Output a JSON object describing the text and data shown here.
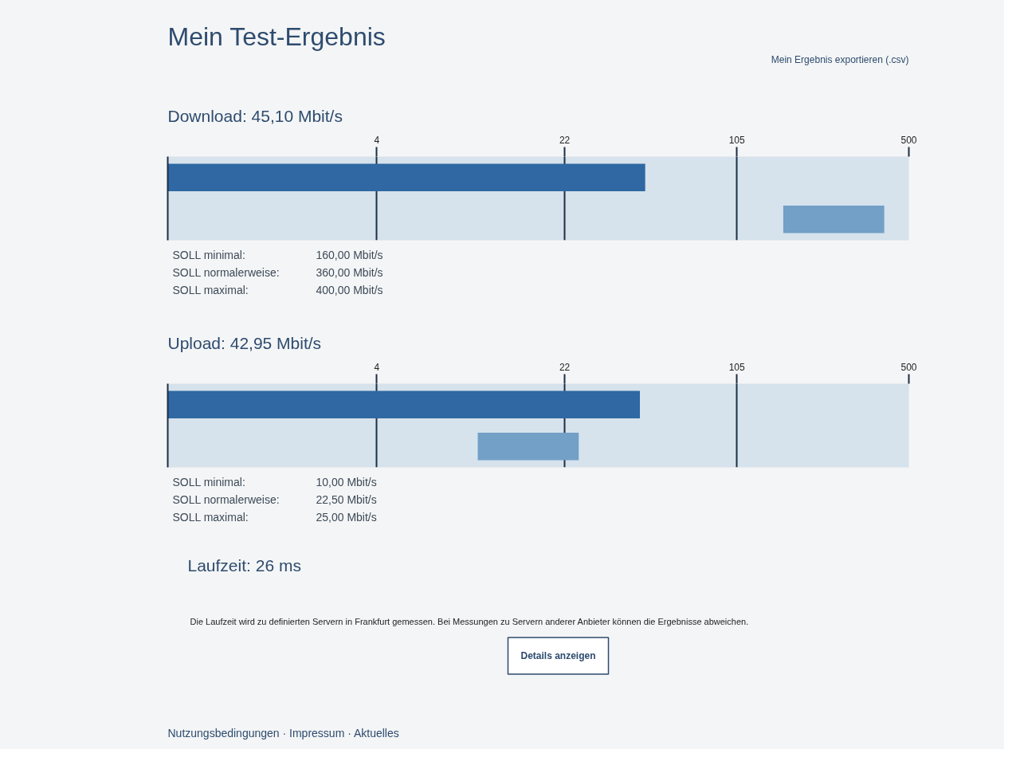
{
  "chart_data": [
    {
      "type": "other",
      "title": "Mein Test-Ergebnis",
      "annotations": [
        "Mein Ergebnis exportieren (.csv)"
      ]
    },
    {
      "type": "bar",
      "title": "Download: 45,10 Mbit/s",
      "orientation": "horizontal",
      "categories": [
        null,
        null
      ],
      "values": [
        45.1,
        240
      ],
      "base": [
        null,
        160
      ],
      "colors": [
        "#2f68a3",
        "#72a0c6"
      ],
      "log": "x",
      "xlim": [
        0.6,
        500
      ],
      "xticks": [
        4,
        22,
        105,
        500
      ],
      "grid": "x",
      "annotations": [
        "SOLL minimal:",
        "160,00 Mbit/s",
        "SOLL normalerweise:",
        "360,00 Mbit/s",
        "SOLL maximal:",
        "400,00 Mbit/s"
      ]
    },
    {
      "type": "bar",
      "title": "Upload: 42,95 Mbit/s",
      "orientation": "horizontal",
      "categories": [
        null,
        null
      ],
      "values": [
        42.95,
        15
      ],
      "base": [
        null,
        10
      ],
      "colors": [
        "#2f68a3",
        "#72a0c6"
      ],
      "log": "x",
      "xlim": [
        0.6,
        500
      ],
      "xticks": [
        4,
        22,
        105,
        500
      ],
      "grid": "x",
      "annotations": [
        "SOLL minimal:",
        "10,00 Mbit/s",
        "SOLL normalerweise:",
        "22,50 Mbit/s",
        "SOLL maximal:",
        "25,00 Mbit/s"
      ]
    },
    {
      "type": "other",
      "title": "Laufzeit: 26 ms",
      "annotations": [
        "Die Laufzeit wird zu definierten Servern in Frankfurt gemessen. Bei Messungen zu Servern anderer Anbieter können die Ergebnisse abweichen.",
        "Details anzeigen",
        "Nutzungsbedingungen · Impressum · Aktuelles"
      ]
    }
  ]
}
